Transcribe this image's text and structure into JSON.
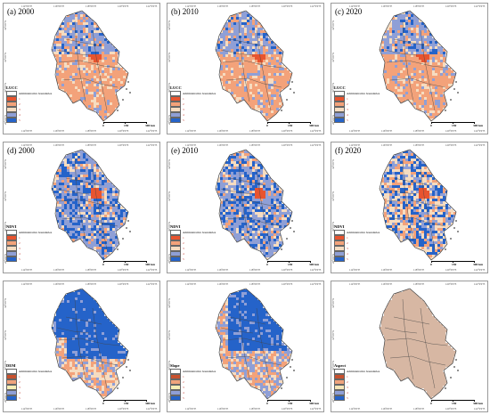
{
  "colors": {
    "c1": "#e8542f",
    "c2": "#f3a27a",
    "c3": "#f6dcc0",
    "c4": "#8f9fd6",
    "c5": "#2563c9",
    "terrain": "#d7b7a3",
    "boundary": "#444444"
  },
  "legend": {
    "boundary_label": "Administrative boundaries",
    "classes": [
      "1",
      "2",
      "3",
      "4",
      "5"
    ]
  },
  "scale": {
    "labels": [
      "0",
      "150",
      "300 km"
    ]
  },
  "ticks": {
    "lon": [
      "114°0'0\"E",
      "116°0'0\"E",
      "118°0'0\"E",
      "120°0'0\"E",
      "122°0'0\"E"
    ],
    "lat": [
      "34°0'0\"N",
      "32°0'0\"N",
      "30°0'0\"N",
      "28°0'0\"N"
    ]
  },
  "panels": [
    {
      "label": "(a) 2000",
      "legend_title": "LUCC",
      "scheme": "lucc",
      "seed": 11
    },
    {
      "label": "(b) 2010",
      "legend_title": "LUCC",
      "scheme": "lucc",
      "seed": 12
    },
    {
      "label": "(c) 2020",
      "legend_title": "LUCC",
      "scheme": "lucc",
      "seed": 13
    },
    {
      "label": "(d) 2000",
      "legend_title": "NDVI",
      "scheme": "ndvi",
      "seed": 21
    },
    {
      "label": "(e) 2010",
      "legend_title": "NDVI",
      "scheme": "ndvi",
      "seed": 22
    },
    {
      "label": "(f) 2020",
      "legend_title": "NDVI",
      "scheme": "ndvi2020",
      "seed": 23
    },
    {
      "label": "",
      "legend_title": "DEM",
      "scheme": "dem",
      "seed": 31
    },
    {
      "label": "",
      "legend_title": "Slope",
      "scheme": "slope",
      "seed": 32
    },
    {
      "label": "",
      "legend_title": "Aspect",
      "scheme": "aspect",
      "seed": 33
    }
  ]
}
